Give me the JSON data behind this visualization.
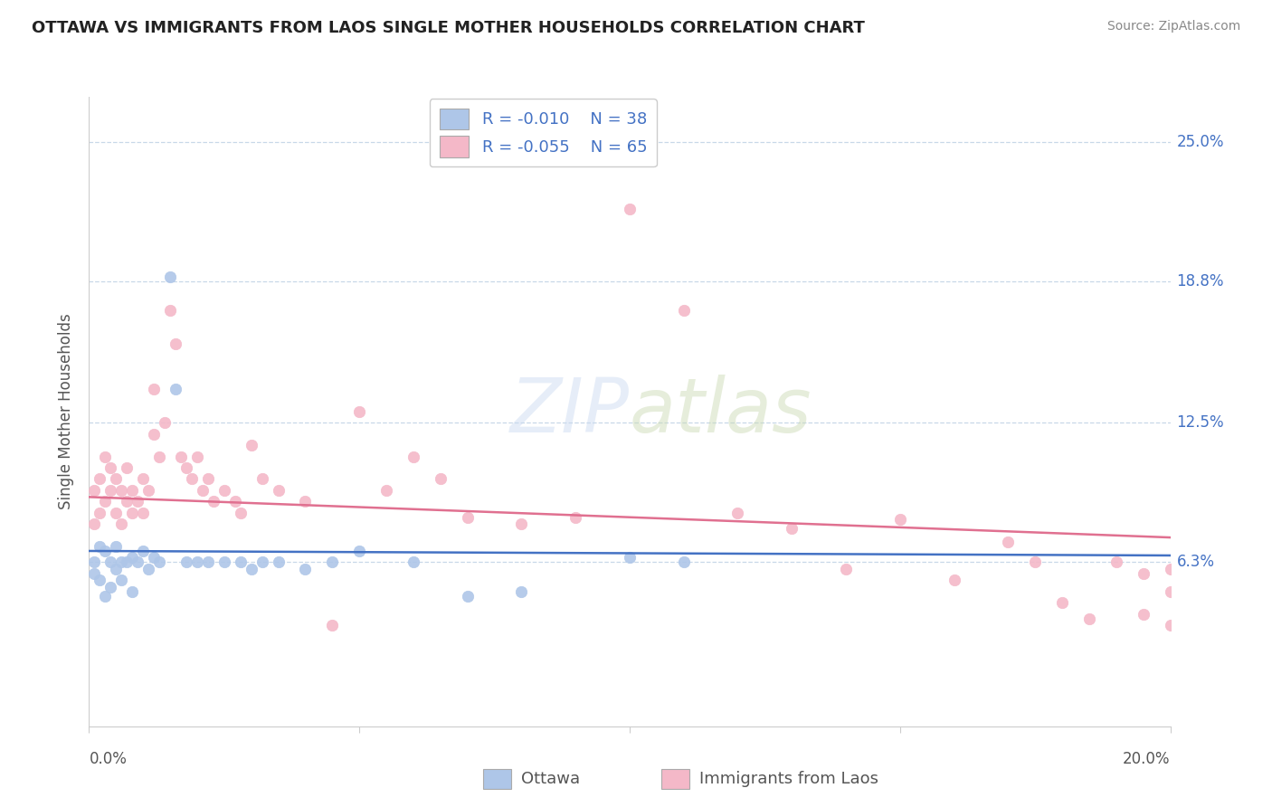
{
  "title": "OTTAWA VS IMMIGRANTS FROM LAOS SINGLE MOTHER HOUSEHOLDS CORRELATION CHART",
  "source": "Source: ZipAtlas.com",
  "ylabel": "Single Mother Households",
  "ytick_labels": [
    "6.3%",
    "12.5%",
    "18.8%",
    "25.0%"
  ],
  "ytick_values": [
    0.063,
    0.125,
    0.188,
    0.25
  ],
  "xlim": [
    0.0,
    0.2
  ],
  "ylim": [
    -0.01,
    0.27
  ],
  "watermark_text": "ZIPatlas",
  "legend_r1": "-0.010",
  "legend_n1": "38",
  "legend_r2": "-0.055",
  "legend_n2": "65",
  "ottawa_color": "#aec6e8",
  "laos_color": "#f4b8c8",
  "line_ottawa": "#4472c4",
  "line_laos": "#e07090",
  "ottawa_x": [
    0.001,
    0.001,
    0.002,
    0.002,
    0.003,
    0.003,
    0.004,
    0.004,
    0.005,
    0.005,
    0.006,
    0.006,
    0.007,
    0.008,
    0.008,
    0.009,
    0.01,
    0.011,
    0.012,
    0.013,
    0.015,
    0.016,
    0.018,
    0.02,
    0.022,
    0.025,
    0.028,
    0.03,
    0.032,
    0.035,
    0.04,
    0.045,
    0.05,
    0.06,
    0.07,
    0.08,
    0.1,
    0.11
  ],
  "ottawa_y": [
    0.063,
    0.058,
    0.07,
    0.055,
    0.068,
    0.048,
    0.063,
    0.052,
    0.06,
    0.07,
    0.063,
    0.055,
    0.063,
    0.065,
    0.05,
    0.063,
    0.068,
    0.06,
    0.065,
    0.063,
    0.19,
    0.14,
    0.063,
    0.063,
    0.063,
    0.063,
    0.063,
    0.06,
    0.063,
    0.063,
    0.06,
    0.063,
    0.068,
    0.063,
    0.048,
    0.05,
    0.065,
    0.063
  ],
  "laos_x": [
    0.001,
    0.001,
    0.002,
    0.002,
    0.003,
    0.003,
    0.004,
    0.004,
    0.005,
    0.005,
    0.006,
    0.006,
    0.007,
    0.007,
    0.008,
    0.008,
    0.009,
    0.01,
    0.01,
    0.011,
    0.012,
    0.012,
    0.013,
    0.014,
    0.015,
    0.016,
    0.017,
    0.018,
    0.019,
    0.02,
    0.021,
    0.022,
    0.023,
    0.025,
    0.027,
    0.028,
    0.03,
    0.032,
    0.035,
    0.04,
    0.045,
    0.05,
    0.055,
    0.06,
    0.065,
    0.07,
    0.08,
    0.09,
    0.1,
    0.11,
    0.12,
    0.13,
    0.14,
    0.15,
    0.16,
    0.17,
    0.175,
    0.18,
    0.185,
    0.19,
    0.195,
    0.195,
    0.2,
    0.2,
    0.2
  ],
  "laos_y": [
    0.095,
    0.08,
    0.1,
    0.085,
    0.11,
    0.09,
    0.105,
    0.095,
    0.085,
    0.1,
    0.095,
    0.08,
    0.09,
    0.105,
    0.085,
    0.095,
    0.09,
    0.1,
    0.085,
    0.095,
    0.14,
    0.12,
    0.11,
    0.125,
    0.175,
    0.16,
    0.11,
    0.105,
    0.1,
    0.11,
    0.095,
    0.1,
    0.09,
    0.095,
    0.09,
    0.085,
    0.115,
    0.1,
    0.095,
    0.09,
    0.035,
    0.13,
    0.095,
    0.11,
    0.1,
    0.083,
    0.08,
    0.083,
    0.22,
    0.175,
    0.085,
    0.078,
    0.06,
    0.082,
    0.055,
    0.072,
    0.063,
    0.045,
    0.038,
    0.063,
    0.058,
    0.04,
    0.06,
    0.035,
    0.05
  ],
  "grid_color": "#c8d8e8",
  "spine_color": "#cccccc",
  "text_color": "#555555",
  "title_color": "#222222",
  "source_color": "#888888",
  "tick_label_color": "#4472c4"
}
